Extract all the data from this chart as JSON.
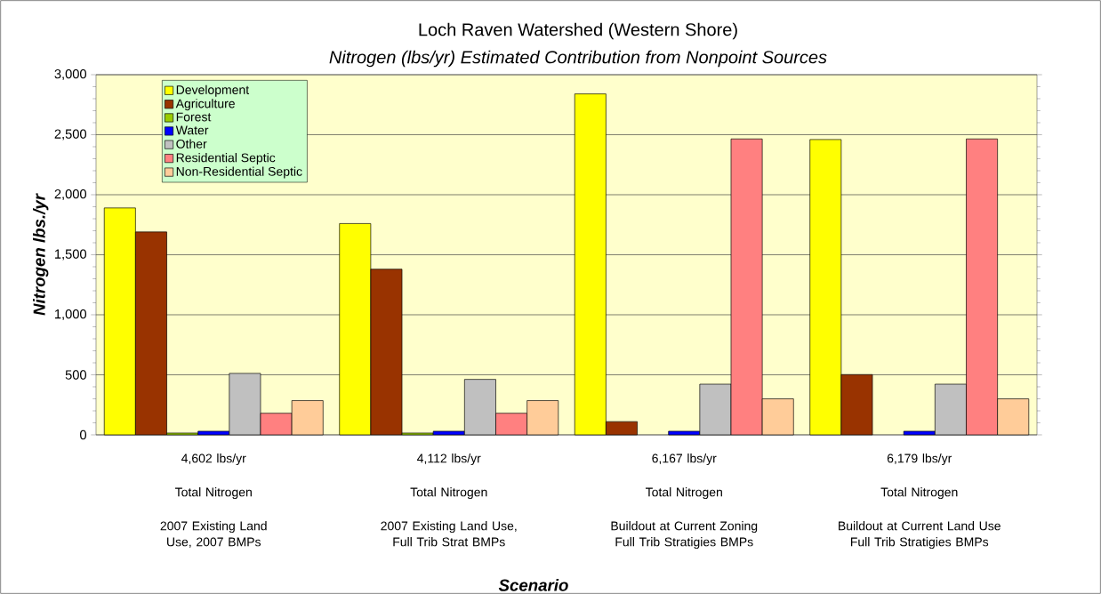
{
  "chart_data": {
    "type": "bar",
    "title": "Loch Raven Watershed (Western Shore)",
    "subtitle": "Nitrogen (lbs/yr) Estimated Contribution from Nonpoint Sources",
    "xlabel": "Scenario",
    "ylabel": "Nitrogen lbs./yr",
    "categories": [
      "2007 Existing Land Use, 2007 BMPs",
      "2007 Existing Land Use, Full Trib Strat BMPs",
      "Buildout at Current Zoning Full Trib Stratigies BMPs",
      "Buildout at Current Land Use Full Trib Stratigies BMPs"
    ],
    "totals": [
      "4,602 lbs/yr",
      "4,112 lbs/yr",
      "6,167 lbs/yr",
      "6,179 lbs/yr"
    ],
    "annotations": [
      "Total Nitrogen",
      "Total Nitrogen",
      "Total Nitrogen",
      "Total Nitrogen"
    ],
    "series": [
      {
        "name": "Development",
        "color": "#ffff00",
        "values": [
          1890,
          1760,
          2840,
          2460
        ]
      },
      {
        "name": "Agriculture",
        "color": "#993300",
        "values": [
          1690,
          1380,
          110,
          502
        ]
      },
      {
        "name": "Forest",
        "color": "#99cc00",
        "values": [
          15,
          15,
          null,
          null
        ]
      },
      {
        "name": "Water",
        "color": "#0000ff",
        "values": [
          30,
          30,
          30,
          30
        ]
      },
      {
        "name": "Other",
        "color": "#c0c0c0",
        "values": [
          512,
          462,
          422,
          422
        ]
      },
      {
        "name": "Residential Septic",
        "color": "#ff8080",
        "values": [
          180,
          180,
          2465,
          2465
        ]
      },
      {
        "name": "Non-Residential Septic",
        "color": "#ffcc99",
        "values": [
          285,
          285,
          300,
          300
        ]
      }
    ],
    "ylim": [
      0,
      3000
    ],
    "yticks": [
      0,
      500,
      {
        "value": 1000,
        "label": "1,000"
      },
      {
        "value": 1500,
        "label": "1,500"
      },
      {
        "value": 2000,
        "label": "2,000"
      },
      {
        "value": 2500,
        "label": "2,500"
      },
      {
        "value": 3000,
        "label": "3,000"
      }
    ],
    "grid": "y",
    "legend": "top left"
  }
}
